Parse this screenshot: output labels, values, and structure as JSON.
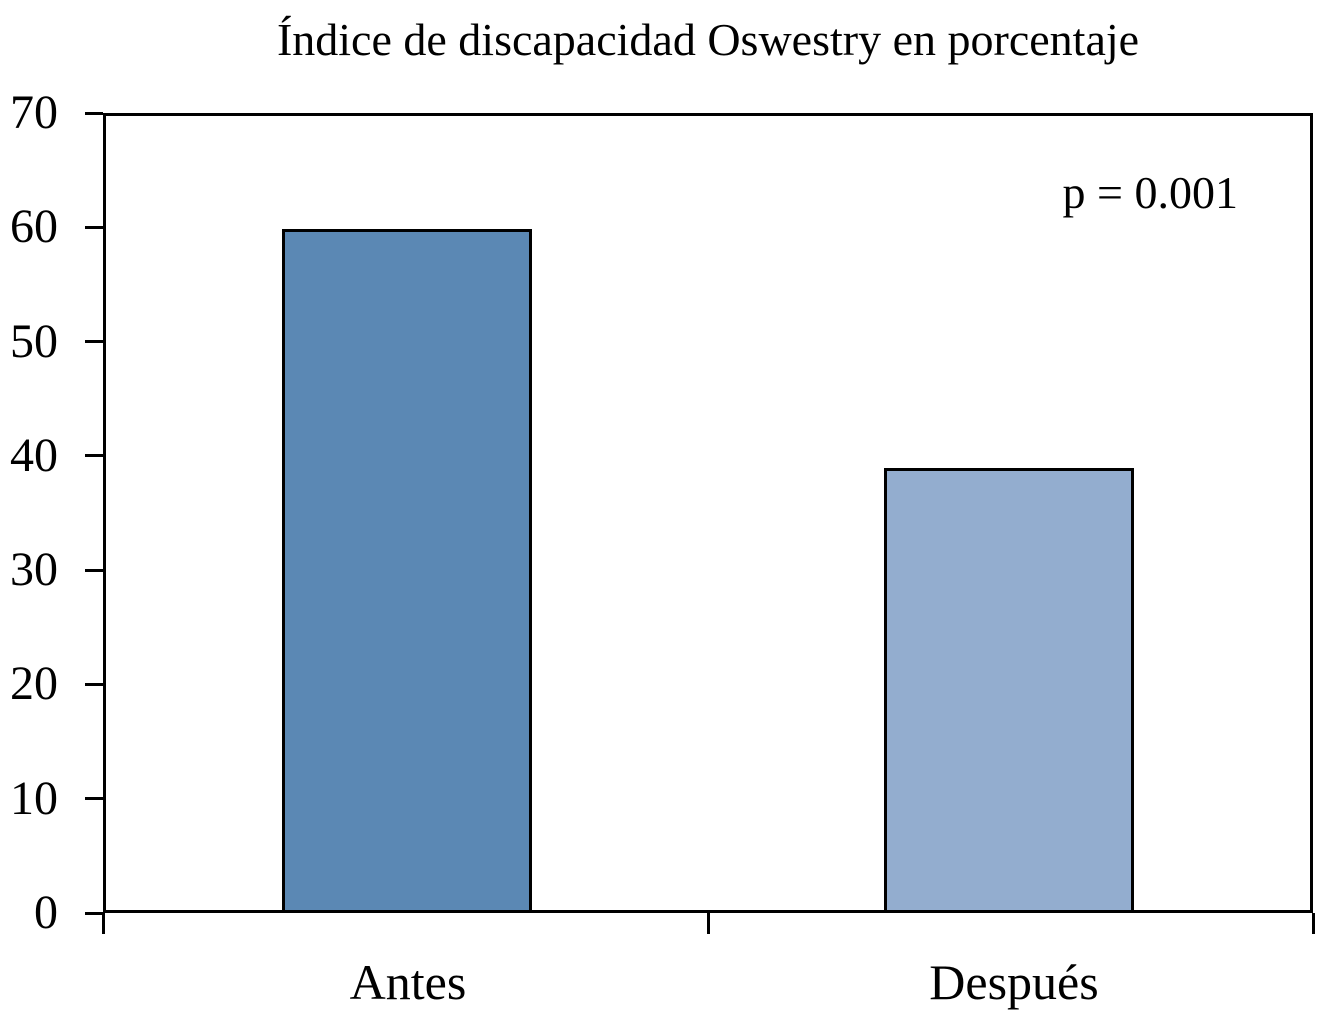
{
  "chart_data": {
    "type": "bar",
    "title": "Índice de discapacidad Oswestry en porcentaje",
    "categories": [
      "Antes",
      "Después"
    ],
    "values": [
      60,
      39
    ],
    "annotation": "p = 0.001",
    "xlabel": "",
    "ylabel": "",
    "ylim": [
      0,
      70
    ],
    "yticks": [
      0,
      10,
      20,
      30,
      40,
      50,
      60,
      70
    ],
    "grid": false,
    "legend": false,
    "bar_colors": [
      "#5B88B4",
      "#93ADCF"
    ],
    "bar_border_color": "#000000",
    "axis_color": "#000000",
    "background_color": "#FFFFFF"
  }
}
